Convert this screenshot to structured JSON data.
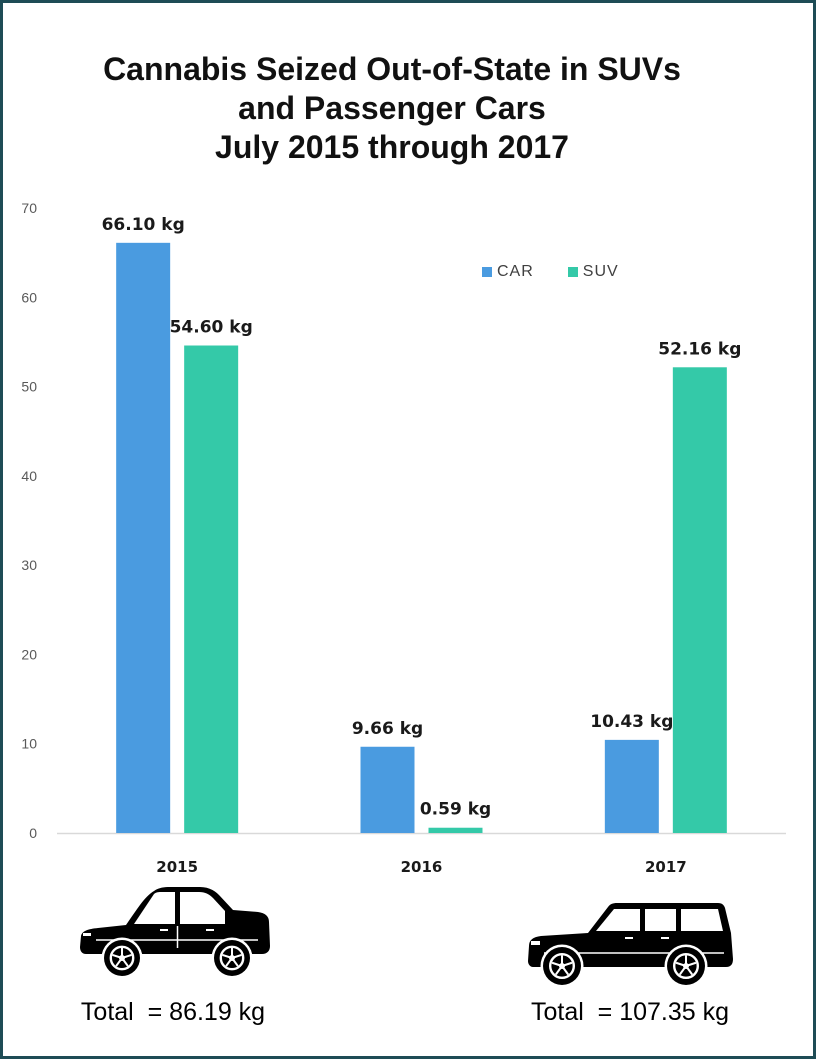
{
  "chart_data": {
    "type": "bar",
    "title_lines": [
      "Cannabis Seized Out-of-State in SUVs",
      "and Passenger Cars",
      "July 2015 through 2017"
    ],
    "categories": [
      "2015",
      "2016",
      "2017"
    ],
    "series": [
      {
        "name": "CAR",
        "color": "#4a9be0",
        "values": [
          66.1,
          9.66,
          10.43
        ],
        "labels": [
          "66.10 kg",
          "9.66 kg",
          "10.43 kg"
        ]
      },
      {
        "name": "SUV",
        "color": "#34c9a8",
        "values": [
          54.6,
          0.59,
          52.16
        ],
        "labels": [
          "54.60 kg",
          "0.59 kg",
          "52.16 kg"
        ]
      }
    ],
    "ylim": [
      0,
      70
    ],
    "yticks": [
      "0",
      "10",
      "20",
      "30",
      "40",
      "50",
      "60",
      "70"
    ],
    "grid": false,
    "legend": "top-right"
  },
  "totals": [
    {
      "icon": "sedan-car-icon",
      "text": "Total  = 86.19 kg"
    },
    {
      "icon": "suv-icon",
      "text": "Total  = 107.35 kg"
    }
  ],
  "colors": {
    "frame": "#1e4c56",
    "axis_line": "#d9d9d9"
  }
}
